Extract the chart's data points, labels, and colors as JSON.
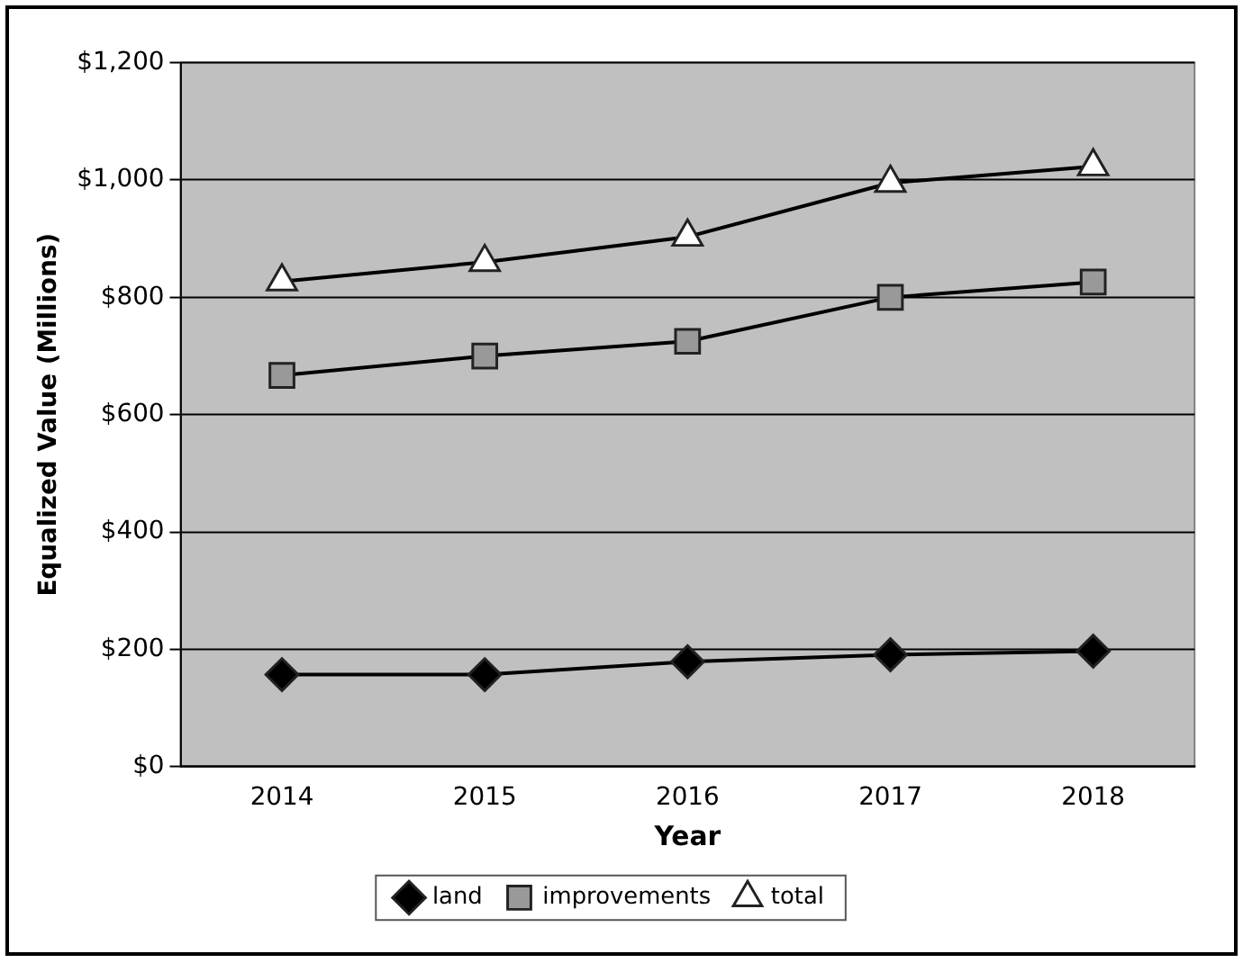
{
  "chart_data": {
    "type": "line",
    "xlabel": "Year",
    "ylabel": "Equalized Value (Millions)",
    "categories": [
      "2014",
      "2015",
      "2016",
      "2017",
      "2018"
    ],
    "series": [
      {
        "name": "land",
        "color": "#000000",
        "marker": "diamond",
        "values": [
          157,
          157,
          179,
          191,
          197
        ]
      },
      {
        "name": "improvements",
        "color": "#999999",
        "marker": "square",
        "values": [
          667,
          700,
          725,
          800,
          826
        ]
      },
      {
        "name": "total",
        "color": "#ffffff",
        "marker": "triangle",
        "values": [
          827,
          860,
          903,
          995,
          1023
        ]
      }
    ],
    "ylim": [
      0,
      1200
    ],
    "yticks": [
      {
        "value": 0,
        "label": "$0"
      },
      {
        "value": 200,
        "label": "$200"
      },
      {
        "value": 400,
        "label": "$400"
      },
      {
        "value": 600,
        "label": "$600"
      },
      {
        "value": 800,
        "label": "$800"
      },
      {
        "value": 1000,
        "label": "$1,000"
      },
      {
        "value": 1200,
        "label": "$1,200"
      }
    ],
    "grid": "y",
    "legend": "bottom",
    "line_style": "solid"
  }
}
